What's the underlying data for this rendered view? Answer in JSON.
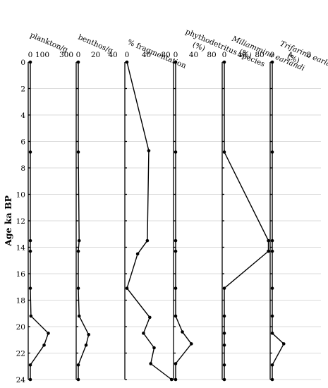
{
  "chart_data": {
    "type": "line",
    "ylabel": "Age ka BP",
    "y_ticks": [
      0,
      2,
      4,
      6,
      8,
      10,
      12,
      14,
      16,
      18,
      20,
      22,
      24
    ],
    "ylim": [
      0,
      24
    ],
    "y_inverted": true,
    "grid": true,
    "panels": [
      {
        "title": "plankton/g",
        "title_lines": [
          "plankton/g"
        ],
        "italic_lines": [
          false
        ],
        "xlim": [
          0,
          300
        ],
        "x_ticks": [
          "0",
          "100",
          "300"
        ],
        "x_tick_values": [
          0,
          100,
          300
        ],
        "points": [
          {
            "x": 0,
            "y": 0
          },
          {
            "x": 0,
            "y": 6.8
          },
          {
            "x": 0,
            "y": 13.5
          },
          {
            "x": 0,
            "y": 14.3
          },
          {
            "x": 0,
            "y": 17.1
          },
          {
            "x": 5,
            "y": 19.2
          },
          {
            "x": 150,
            "y": 20.5
          },
          {
            "x": 115,
            "y": 21.4
          },
          {
            "x": 0,
            "y": 22.9
          },
          {
            "x": 0,
            "y": 24
          }
        ]
      },
      {
        "title": "benthos/g",
        "title_lines": [
          "benthos/g"
        ],
        "italic_lines": [
          false
        ],
        "xlim": [
          0,
          40
        ],
        "x_ticks": [
          "0",
          "20",
          "40"
        ],
        "x_tick_values": [
          0,
          20,
          40
        ],
        "points": [
          {
            "x": 0,
            "y": 0
          },
          {
            "x": 0,
            "y": 6.8
          },
          {
            "x": 1,
            "y": 13.5
          },
          {
            "x": 0,
            "y": 14.3
          },
          {
            "x": 0,
            "y": 17.1
          },
          {
            "x": 1,
            "y": 19.2
          },
          {
            "x": 12,
            "y": 20.6
          },
          {
            "x": 9,
            "y": 21.4
          },
          {
            "x": 0,
            "y": 22.9
          },
          {
            "x": 0,
            "y": 24
          }
        ]
      },
      {
        "title": "% fragmentation",
        "title_lines": [
          "% fragmentation"
        ],
        "italic_lines": [
          false
        ],
        "xlim": [
          0,
          80
        ],
        "x_ticks": [
          "0",
          "40",
          "80"
        ],
        "x_tick_values": [
          0,
          40,
          80
        ],
        "points": [
          {
            "x": 0,
            "y": 0
          },
          {
            "x": 45,
            "y": 6.7
          },
          {
            "x": 42,
            "y": 13.5
          },
          {
            "x": 22,
            "y": 14.5
          },
          {
            "x": 0,
            "y": 17.1
          },
          {
            "x": 47,
            "y": 19.3
          },
          {
            "x": 34,
            "y": 20.5
          },
          {
            "x": 56,
            "y": 21.6
          },
          {
            "x": 49,
            "y": 22.8
          },
          {
            "x": 92,
            "y": 24
          }
        ]
      },
      {
        "title": "phythodetritus species (%)",
        "title_lines": [
          "phythodetritus species",
          "(%)"
        ],
        "italic_lines": [
          false,
          false
        ],
        "xlim": [
          0,
          80
        ],
        "x_ticks": [
          "0",
          "40",
          "80"
        ],
        "x_tick_values": [
          0,
          40,
          80
        ],
        "points": [
          {
            "x": 0,
            "y": 0
          },
          {
            "x": 0,
            "y": 6.8
          },
          {
            "x": 0,
            "y": 13.5
          },
          {
            "x": 0,
            "y": 14.3
          },
          {
            "x": 0,
            "y": 17.1
          },
          {
            "x": 0,
            "y": 19.2
          },
          {
            "x": 15,
            "y": 20.4
          },
          {
            "x": 35,
            "y": 21.3
          },
          {
            "x": 0,
            "y": 22.8
          },
          {
            "x": 0,
            "y": 24
          }
        ]
      },
      {
        "title": "Miliammina earlandi (%)",
        "title_lines": [
          "Miliammina earlandi",
          "(%)"
        ],
        "italic_lines": [
          true,
          false
        ],
        "xlim": [
          0,
          80
        ],
        "x_ticks": [
          "0",
          "40",
          "80"
        ],
        "x_tick_values": [
          0,
          40,
          80
        ],
        "points": [
          {
            "x": 0,
            "y": 0
          },
          {
            "x": 0,
            "y": 6.8
          },
          {
            "x": 100,
            "y": 13.5
          },
          {
            "x": 100,
            "y": 14.3
          },
          {
            "x": 0,
            "y": 17.1
          },
          {
            "x": 0,
            "y": 19.2
          },
          {
            "x": 0,
            "y": 20.5
          },
          {
            "x": 0,
            "y": 21.4
          },
          {
            "x": 0,
            "y": 22.9
          },
          {
            "x": 0,
            "y": 24
          }
        ]
      },
      {
        "title": "Trifarina earlandi (%)",
        "title_lines": [
          "Trifarina earlandi",
          "(%)"
        ],
        "italic_lines": [
          true,
          false
        ],
        "xlim": [
          0,
          8
        ],
        "x_ticks": [
          "0",
          "4",
          "8"
        ],
        "x_tick_values": [
          0,
          4,
          8
        ],
        "points": [
          {
            "x": 0,
            "y": 0
          },
          {
            "x": 0,
            "y": 6.8
          },
          {
            "x": 0,
            "y": 13.5
          },
          {
            "x": 0,
            "y": 14.3
          },
          {
            "x": 0,
            "y": 17.1
          },
          {
            "x": 0,
            "y": 19.2
          },
          {
            "x": 0,
            "y": 20.5
          },
          {
            "x": 2.5,
            "y": 21.3
          },
          {
            "x": 0,
            "y": 22.9
          },
          {
            "x": 0,
            "y": 24
          }
        ]
      }
    ]
  }
}
